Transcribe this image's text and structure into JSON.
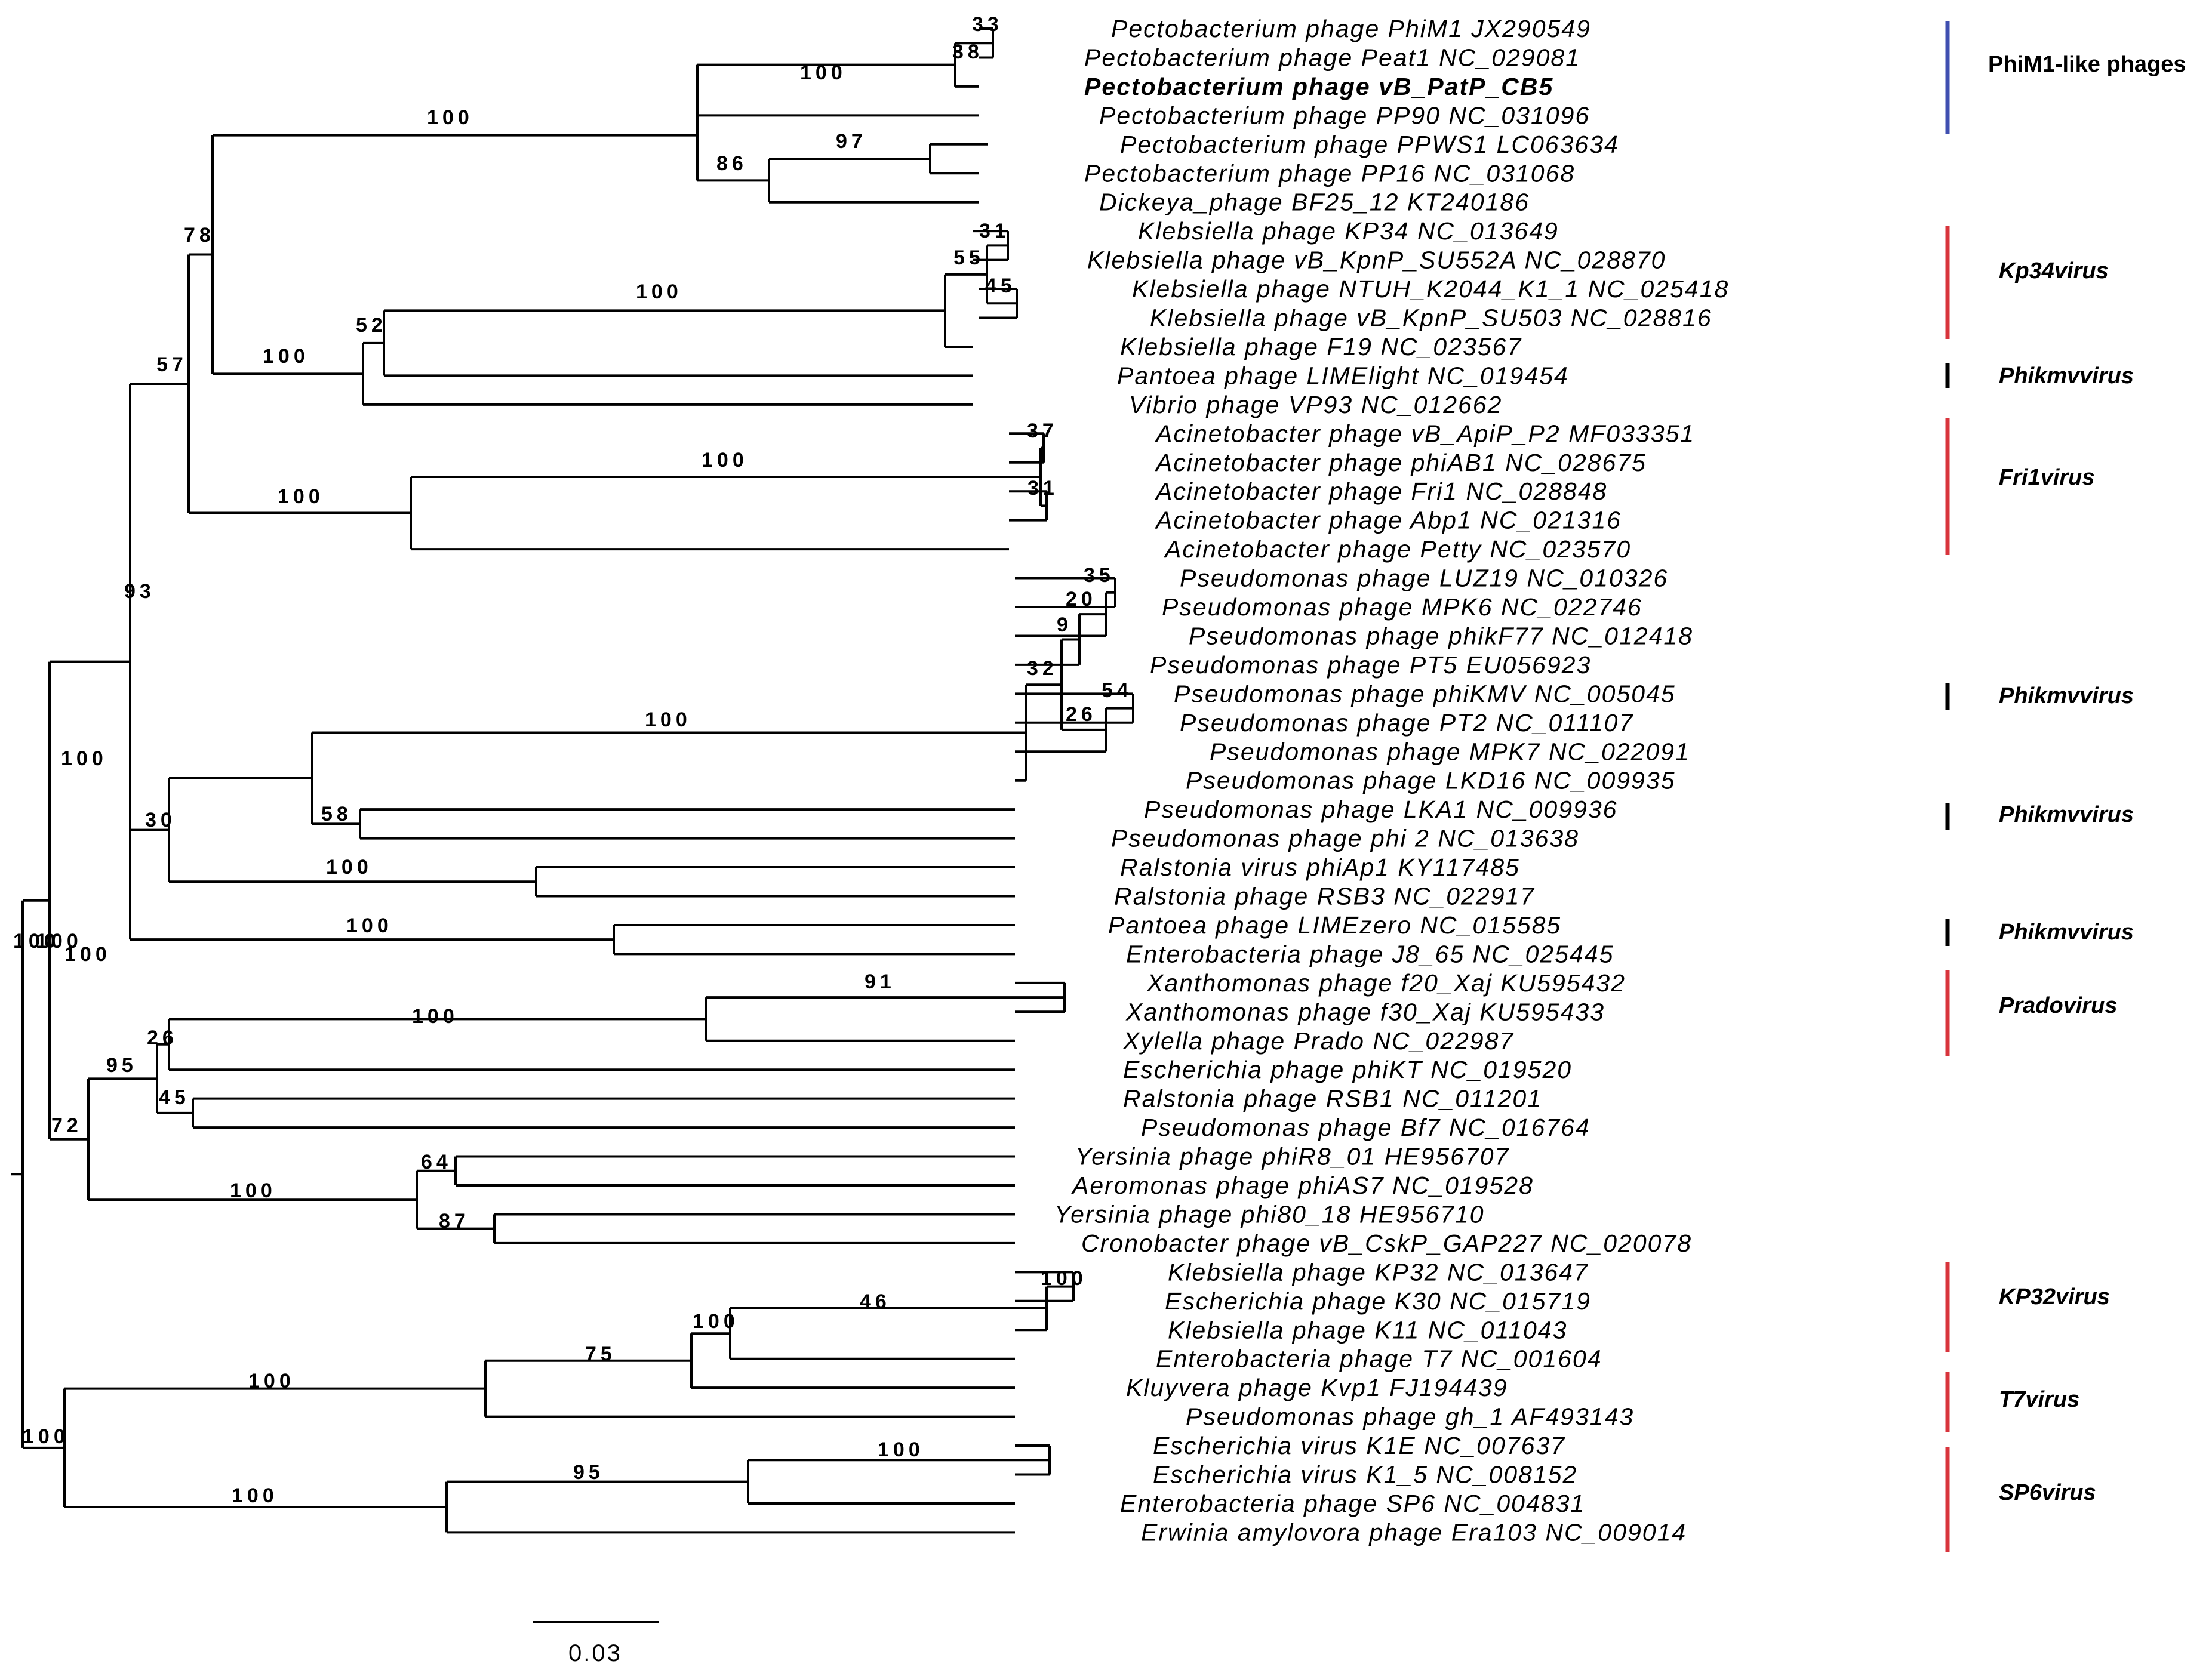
{
  "tree": {
    "scale_bar_label": "0.03",
    "leaves": [
      "Pectobacterium  phage  PhiM1   JX290549",
      "Pectobacterium  phage  Peat1   NC_029081",
      "Pectobacterium  phage  vB_PatP_CB5",
      "Pectobacterium  phage  PP90   NC_031096",
      "Pectobacterium  phage  PPWS1   LC063634",
      "Pectobacterium  phage  PP16   NC_031068",
      "Dickeya_phage  BF25_12   KT240186",
      "Klebsiella  phage  KP34   NC_013649",
      "Klebsiella  phage  vB_KpnP_SU552A   NC_028870",
      "Klebsiella  phage  NTUH_K2044_K1_1   NC_025418",
      "Klebsiella  phage  vB_KpnP_SU503   NC_028816",
      "Klebsiella  phage  F19   NC_023567",
      "Pantoea  phage  LIMElight   NC_019454",
      "Vibrio  phage  VP93   NC_012662",
      "Acinetobacter  phage  vB_ApiP_P2   MF033351",
      "Acinetobacter  phage  phiAB1   NC_028675",
      "Acinetobacter  phage  Fri1   NC_028848",
      "Acinetobacter  phage  Abp1   NC_021316",
      "Acinetobacter  phage  Petty   NC_023570",
      "Pseudomonas  phage  LUZ19   NC_010326",
      "Pseudomonas  phage  MPK6   NC_022746",
      "Pseudomonas  phage  phikF77   NC_012418",
      "Pseudomonas  phage  PT5   EU056923",
      "Pseudomonas  phage  phiKMV   NC_005045",
      "Pseudomonas  phage  PT2   NC_011107",
      "Pseudomonas  phage  MPK7   NC_022091",
      "Pseudomonas  phage  LKD16   NC_009935",
      "Pseudomonas  phage  LKA1   NC_009936",
      "Pseudomonas  phage  phi 2   NC_013638",
      "Ralstonia  virus  phiAp1   KY117485",
      "Ralstonia  phage  RSB3   NC_022917",
      "Pantoea  phage  LIMEzero   NC_015585",
      "Enterobacteria  phage  J8_65   NC_025445",
      "Xanthomonas  phage  f20_Xaj   KU595432",
      "Xanthomonas  phage  f30_Xaj   KU595433",
      "Xylella  phage  Prado   NC_022987",
      "Escherichia  phage  phiKT   NC_019520",
      "Ralstonia  phage  RSB1   NC_011201",
      "Pseudomonas  phage  Bf7   NC_016764",
      "Yersinia  phage  phiR8_01   HE956707",
      "Aeromonas  phage  phiAS7   NC_019528",
      "Yersinia  phage  phi80_18   HE956710",
      "Cronobacter  phage  vB_CskP_GAP227   NC_020078",
      "Klebsiella  phage  KP32   NC_013647",
      "Escherichia  phage  K30   NC_015719",
      "Klebsiella  phage  K11   NC_011043",
      "Enterobacteria  phage  T7   NC_001604",
      "Kluyvera  phage  Kvp1   FJ194439",
      "Pseudomonas  phage  gh_1   AF493143",
      "Escherichia  virus  K1E   NC_007637",
      "Escherichia  virus  K1_5   NC_008152",
      "Enterobacteria  phage  SP6   NC_004831",
      "Erwinia  amylovora  phage  Era103   NC_009014"
    ],
    "highlight_leaf_index": 2,
    "support_values": [
      "33",
      "38",
      "100",
      "97",
      "86",
      "100",
      "31",
      "55",
      "45",
      "100",
      "52",
      "100",
      "78",
      "57",
      "37",
      "31",
      "100",
      "100",
      "35",
      "20",
      "9",
      "32",
      "54",
      "26",
      "100",
      "58",
      "100",
      "30",
      "100",
      "100",
      "93",
      "100",
      "91",
      "100",
      "26",
      "45",
      "95",
      "64",
      "87",
      "100",
      "72",
      "100",
      "46",
      "100",
      "75",
      "100",
      "100",
      "95",
      "100",
      "100",
      "100",
      "100"
    ],
    "groups": [
      {
        "label": "PhiM1-like phages",
        "color": "#3f4fb0"
      },
      {
        "label": "Kp34virus",
        "color": "#d8343c"
      },
      {
        "label": "Phikmvvirus",
        "color": "#000000"
      },
      {
        "label": "Fri1virus",
        "color": "#d8343c"
      },
      {
        "label": "Phikmvvirus",
        "color": "#000000"
      },
      {
        "label": "Phikmvvirus",
        "color": "#000000"
      },
      {
        "label": "Phikmvvirus",
        "color": "#000000"
      },
      {
        "label": "Pradovirus",
        "color": "#d8343c"
      },
      {
        "label": "KP32virus",
        "color": "#d8343c"
      },
      {
        "label": "T7virus",
        "color": "#d8343c"
      },
      {
        "label": "SP6virus",
        "color": "#d8343c"
      }
    ]
  }
}
